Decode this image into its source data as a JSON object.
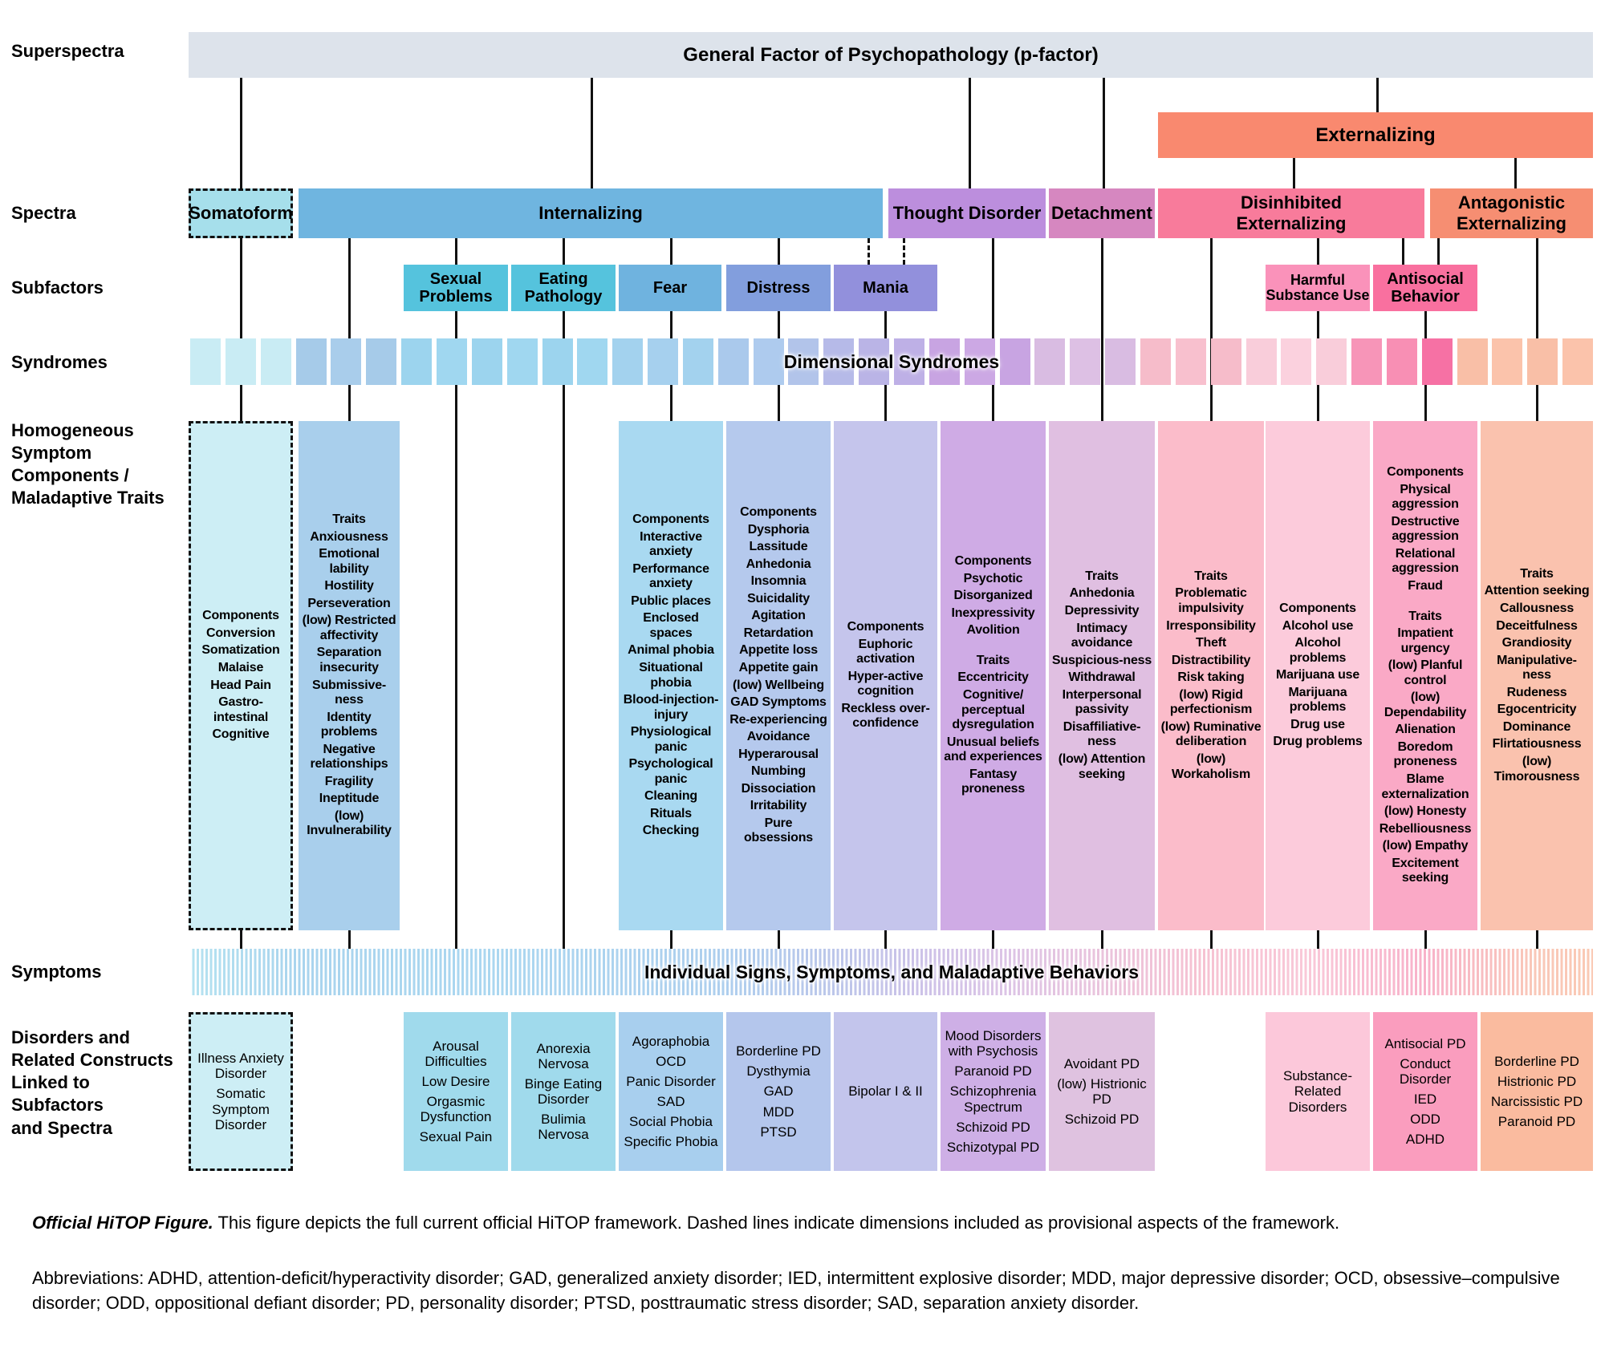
{
  "figure": {
    "row_labels": {
      "superspectra": "Superspectra",
      "spectra": "Spectra",
      "subfactors": "Subfactors",
      "syndromes": "Syndromes",
      "components": [
        "Homogeneous",
        "Symptom",
        "Components /",
        "Maladaptive Traits"
      ],
      "symptoms": "Symptoms",
      "disorders": [
        "Disorders and",
        "Related Constructs",
        "Linked to Subfactors",
        "and Spectra"
      ]
    },
    "p_factor": {
      "label": "General Factor of Psychopathology (p-factor)",
      "color": "#dde3eb"
    },
    "externalizing_superspectrum": {
      "label": "Externalizing",
      "color": "#f9896f"
    },
    "spectra": {
      "somatoform": {
        "label": "Somatoform",
        "color": "#a6dfeb",
        "provisional": true
      },
      "internalizing": {
        "label": "Internalizing",
        "color": "#6fb5e0"
      },
      "thought_disorder": {
        "label": "Thought Disorder",
        "color": "#bc8edd"
      },
      "detachment": {
        "label": "Detachment",
        "color": "#d687c0"
      },
      "disinhibited": {
        "label": "Disinhibited Externalizing",
        "color": "#f87b9b"
      },
      "antagonistic": {
        "label": "Antagonistic Externalizing",
        "color": "#f68e72"
      }
    },
    "subfactors": {
      "sexual_problems": {
        "label": "Sexual Problems",
        "color": "#55c3dd"
      },
      "eating_pathology": {
        "label": "Eating Pathology",
        "color": "#55c3dd"
      },
      "fear": {
        "label": "Fear",
        "color": "#6fb3df"
      },
      "distress": {
        "label": "Distress",
        "color": "#829edd"
      },
      "mania": {
        "label": "Mania",
        "color": "#9290dc"
      },
      "harmful_substance_use": {
        "label": "Harmful Substance Use",
        "color": "#fa92ba"
      },
      "antisocial_behavior": {
        "label": "Antisocial Behavior",
        "color": "#f9709f"
      }
    },
    "syndromes_strip": {
      "label": "Dimensional Syndromes",
      "square_colors": [
        "#c9ecf4",
        "#c9ecf4",
        "#c9ecf4",
        "#a6cbe9",
        "#a9cdeb",
        "#a6cbe9",
        "#9cd4ee",
        "#a0d7f0",
        "#9cd4ee",
        "#a0d7f0",
        "#9cd4ee",
        "#a0d7f0",
        "#a3d2ee",
        "#a6d0ee",
        "#a3d2ee",
        "#aac9ec",
        "#aecbee",
        "#b2c4ea",
        "#b6bae8",
        "#bab4e6",
        "#beb0e6",
        "#c8a4e2",
        "#cca8e4",
        "#c8a4e2",
        "#d9bce2",
        "#ddc0e4",
        "#d9bce2",
        "#f6bcca",
        "#f8c0ce",
        "#f6bcca",
        "#f9cdda",
        "#fbd1de",
        "#f9cdda",
        "#f795b8",
        "#f88fb4",
        "#f671a4",
        "#f9bfa7",
        "#fbc3ab",
        "#f9bfa7",
        "#fbc3ab"
      ]
    },
    "components": {
      "somatoform": {
        "color": "#cdeef5",
        "provisional": true,
        "text": [
          "Components",
          "Conversion",
          "Somatization",
          "Malaise",
          "Head Pain",
          "Gastro-intestinal",
          "Cognitive"
        ]
      },
      "internalizing_traits": {
        "color": "#a9cfec",
        "text": [
          "Traits",
          "Anxiousness",
          "Emotional lability",
          "Hostility",
          "Perseveration",
          "(low) Restricted affectivity",
          "Separation insecurity",
          "Submissive-ness",
          "Identity problems",
          "Negative relationships",
          "Fragility",
          "Ineptitude",
          "(low) Invulnerability"
        ]
      },
      "fear": {
        "color": "#a9d9f1",
        "text": [
          "Components",
          "Interactive anxiety",
          "Performance anxiety",
          "Public places",
          "Enclosed spaces",
          "Animal phobia",
          "Situational phobia",
          "Blood-injection-injury",
          "Physiological panic",
          "Psychological panic",
          "Cleaning",
          "Rituals",
          "Checking"
        ]
      },
      "distress": {
        "color": "#b5c9ed",
        "text": [
          "Components",
          "Dysphoria",
          "Lassitude",
          "Anhedonia",
          "Insomnia",
          "Suicidality",
          "Agitation",
          "Retardation",
          "Appetite loss",
          "Appetite gain",
          "(low) Wellbeing",
          "GAD Symptoms",
          "Re-experiencing",
          "Avoidance",
          "Hyperarousal",
          "Numbing",
          "Dissociation",
          "Irritability",
          "Pure obsessions"
        ]
      },
      "mania": {
        "color": "#c5c5ec",
        "text": [
          "Components",
          "Euphoric activation",
          "Hyper-active cognition",
          "Reckless over-confidence"
        ]
      },
      "thought_disorder": {
        "color": "#cfabe5",
        "text": [
          "Components",
          "Psychotic",
          "Disorganized",
          "Inexpressivity",
          "Avolition",
          "",
          "Traits",
          "Eccentricity",
          "Cognitive/ perceptual dysregulation",
          "Unusual beliefs and experiences",
          "Fantasy proneness"
        ]
      },
      "detachment": {
        "color": "#e0bfe1",
        "text": [
          "Traits",
          "Anhedonia",
          "Depressivity",
          "Intimacy avoidance",
          "Suspicious-ness",
          "Withdrawal",
          "Interpersonal passivity",
          "Disaffiliative-ness",
          "(low) Attention seeking"
        ]
      },
      "disinhibited_traits": {
        "color": "#fbbcca",
        "text": [
          "Traits",
          "Problematic impulsivity",
          "Irresponsibility",
          "Theft",
          "Distractibility",
          "Risk taking",
          "(low) Rigid perfectionism",
          "(low) Ruminative deliberation",
          "(low) Workaholism"
        ]
      },
      "substance_use": {
        "color": "#fccbdb",
        "text": [
          "Components",
          "Alcohol use",
          "Alcohol problems",
          "Marijuana use",
          "Marijuana problems",
          "Drug use",
          "Drug problems"
        ]
      },
      "antisocial": {
        "color": "#faa9c6",
        "text": [
          "Components",
          "Physical aggression",
          "Destructive aggression",
          "Relational aggression",
          "Fraud",
          "",
          "Traits",
          "Impatient urgency",
          "(low) Planful control",
          "(low) Dependability",
          "Alienation",
          "Boredom proneness",
          "Blame externalization",
          "(low) Honesty",
          "Rebelliousness",
          "(low) Empathy",
          "Excitement seeking"
        ]
      },
      "antagonistic_traits": {
        "color": "#fac2ae",
        "text": [
          "Traits",
          "Attention seeking",
          "Callousness",
          "Deceitfulness",
          "Grandiosity",
          "Manipulative-ness",
          "Rudeness",
          "Egocentricity",
          "Dominance",
          "Flirtatiousness",
          "(low) Timorousness"
        ]
      }
    },
    "symptoms_strip": {
      "label": "Individual Signs, Symptoms, and Maladaptive Behaviors"
    },
    "disorders": {
      "somatoform": {
        "color": "#cdeef5",
        "provisional": true,
        "items": [
          "Illness Anxiety Disorder",
          "Somatic Symptom Disorder"
        ]
      },
      "sexual_problems": {
        "color": "#a0daec",
        "items": [
          "Arousal Difficulties",
          "Low Desire",
          "Orgasmic Dysfunction",
          "Sexual Pain"
        ]
      },
      "eating_pathology": {
        "color": "#a0daec",
        "items": [
          "Anorexia Nervosa",
          "Binge Eating Disorder",
          "Bulimia Nervosa"
        ]
      },
      "fear": {
        "color": "#a8cfee",
        "items": [
          "Agoraphobia",
          "OCD",
          "Panic Disorder",
          "SAD",
          "Social Phobia",
          "Specific Phobia"
        ]
      },
      "distress": {
        "color": "#b4c6ec",
        "items": [
          "Borderline PD",
          "Dysthymia",
          "GAD",
          "MDD",
          "PTSD"
        ]
      },
      "mania": {
        "color": "#c3c5ec",
        "items": [
          "Bipolar I & II"
        ]
      },
      "thought_disorder": {
        "color": "#ceafe6",
        "items": [
          "Mood Disorders with Psychosis",
          "Paranoid PD",
          "Schizophrenia Spectrum",
          "Schizoid PD",
          "Schizotypal PD"
        ]
      },
      "detachment": {
        "color": "#dfc2e0",
        "items": [
          "Avoidant PD",
          "(low) Histrionic PD",
          "Schizoid PD"
        ]
      },
      "substance_use": {
        "color": "#fcc8da",
        "items": [
          "Substance-Related Disorders"
        ]
      },
      "antisocial": {
        "color": "#fa9dbe",
        "items": [
          "Antisocial PD",
          "Conduct Disorder",
          "IED",
          "ODD",
          "ADHD"
        ]
      },
      "antagonistic": {
        "color": "#fabb9f",
        "items": [
          "Borderline PD",
          "Histrionic PD",
          "Narcissistic PD",
          "Paranoid PD"
        ]
      }
    },
    "caption": {
      "title": "Official HiTOP Figure.",
      "text": " This figure depicts the full current official HiTOP framework. Dashed lines indicate dimensions included as provisional aspects of the framework.",
      "abbreviations": "Abbreviations: ADHD, attention-deficit/hyperactivity disorder; GAD, generalized anxiety disorder; IED, intermittent explosive disorder; MDD, major depressive disorder; OCD, obsessive–compulsive disorder; ODD, oppositional defiant disorder; PD, personality disorder; PTSD, posttraumatic stress disorder; SAD, separation anxiety disorder."
    }
  }
}
